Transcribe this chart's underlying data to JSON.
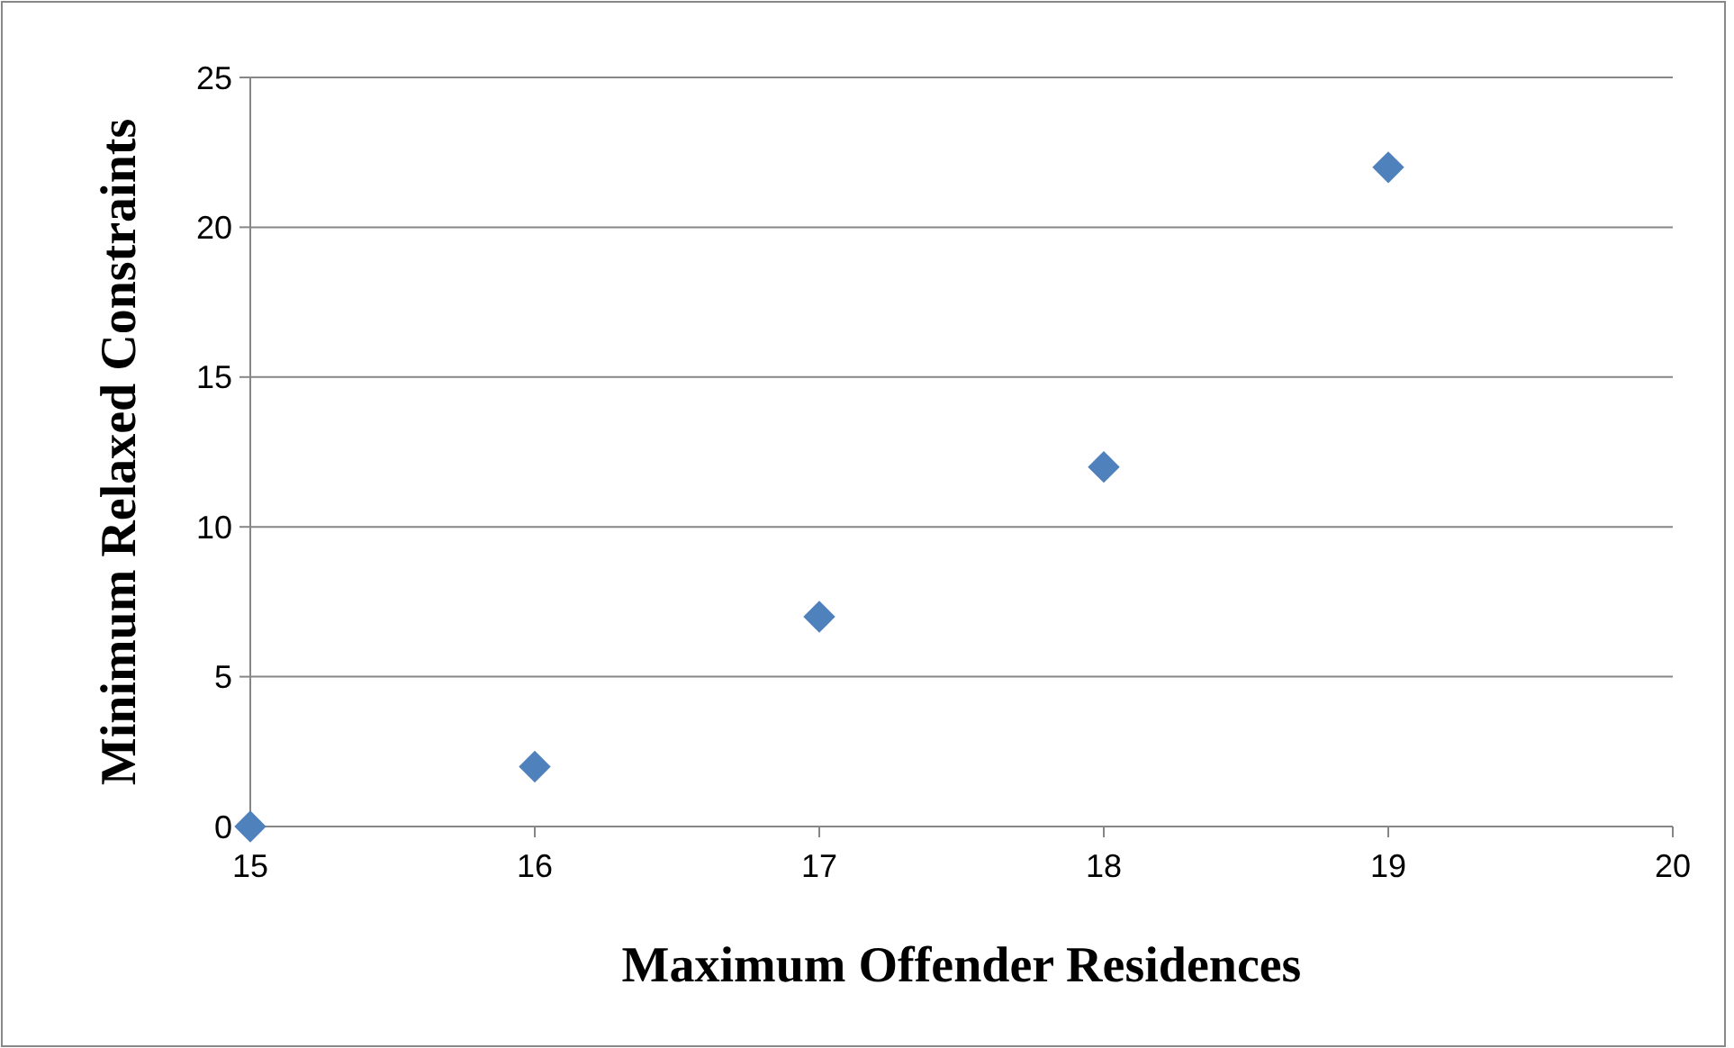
{
  "chart_data": {
    "type": "scatter",
    "xlabel": "Maximum Offender Residences",
    "ylabel": "Minimum Relaxed Constraints",
    "x": [
      15,
      16,
      17,
      18,
      19
    ],
    "values": [
      0,
      2,
      7,
      12,
      22
    ],
    "color": "#4f81bd",
    "marker": "diamond",
    "xlim": [
      15,
      20
    ],
    "xticks": [
      15,
      16,
      17,
      18,
      19,
      20
    ],
    "ylim": [
      0,
      25
    ],
    "yticks": [
      0,
      5,
      10,
      15,
      20,
      25
    ],
    "grid": "y"
  }
}
